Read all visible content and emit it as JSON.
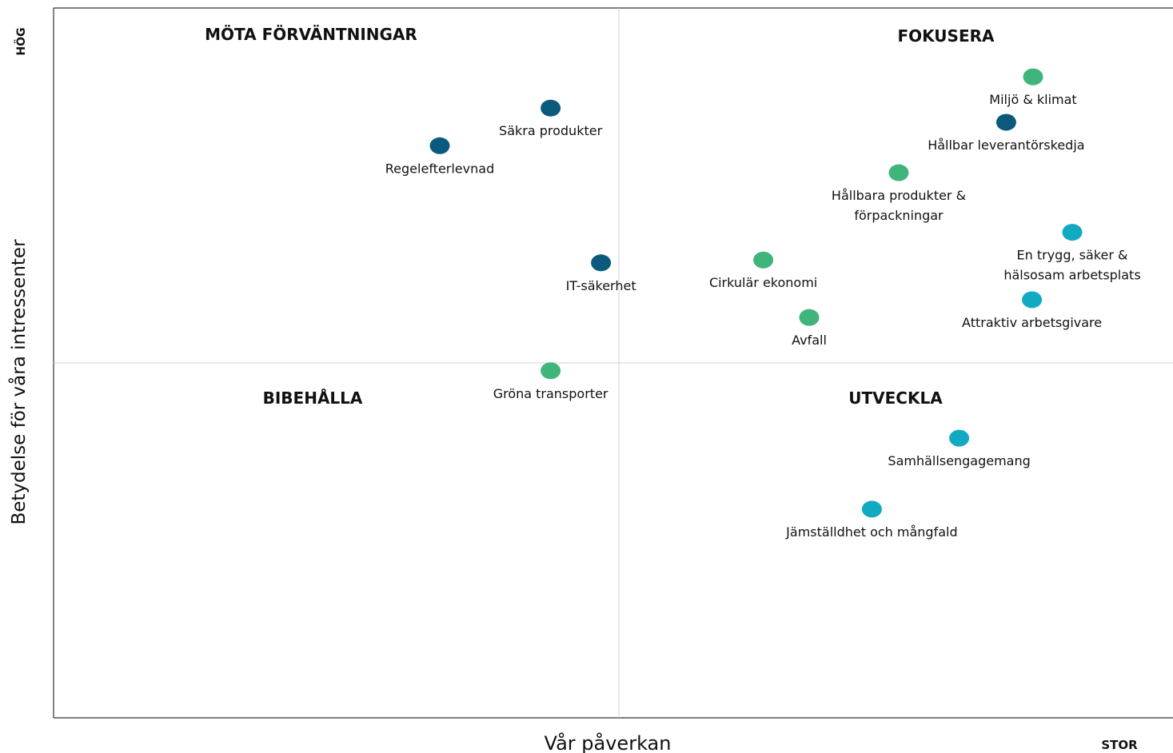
{
  "chart_data": {
    "type": "scatter",
    "xlabel": "Vår påverkan",
    "ylabel": "Betydelse för våra intressenter",
    "x_end_label": "STOR",
    "y_end_label": "HÖG",
    "quadrants": [
      "MÖTA FÖRVÄNTNINGAR",
      "FOKUSERA",
      "BIBEHÅLLA",
      "UTVECKLA"
    ],
    "xlim": [
      0,
      100
    ],
    "ylim": [
      0,
      100
    ],
    "dividers": {
      "x": 50.5,
      "y": 50
    },
    "points": [
      {
        "label": [
          "Miljö & klimat"
        ],
        "x": 87.5,
        "y": 90.3,
        "color": "#3fb57c"
      },
      {
        "label": [
          "Hållbar leverantörskedja"
        ],
        "x": 85.1,
        "y": 83.9,
        "color": "#0b5a7d"
      },
      {
        "label": [
          "Hållbara produkter &",
          "förpackningar"
        ],
        "x": 75.5,
        "y": 76.8,
        "color": "#3fb57c"
      },
      {
        "label": [
          "En trygg, säker &",
          "hälsosam arbetsplats"
        ],
        "x": 91.0,
        "y": 68.4,
        "color": "#12a9c2"
      },
      {
        "label": [
          "Attraktiv arbetsgivare"
        ],
        "x": 87.4,
        "y": 58.9,
        "color": "#12a9c2"
      },
      {
        "label": [
          "Cirkulär ekonomi"
        ],
        "x": 63.4,
        "y": 64.5,
        "color": "#3fb57c"
      },
      {
        "label": [
          "Avfall"
        ],
        "x": 67.5,
        "y": 56.4,
        "color": "#3fb57c"
      },
      {
        "label": [
          "IT-säkerhet"
        ],
        "x": 48.9,
        "y": 64.1,
        "color": "#0b5a7d"
      },
      {
        "label": [
          "Säkra produkter"
        ],
        "x": 44.4,
        "y": 85.9,
        "color": "#0b5a7d"
      },
      {
        "label": [
          "Regelefterlevnad"
        ],
        "x": 34.5,
        "y": 80.6,
        "color": "#0b5a7d"
      },
      {
        "label": [
          "Gröna transporter"
        ],
        "x": 44.4,
        "y": 48.9,
        "color": "#3fb57c"
      },
      {
        "label": [
          "Samhällsengagemang"
        ],
        "x": 80.9,
        "y": 39.4,
        "color": "#12a9c2"
      },
      {
        "label": [
          "Jämställdhet och mångfald"
        ],
        "x": 73.1,
        "y": 29.4,
        "color": "#12a9c2"
      }
    ]
  }
}
